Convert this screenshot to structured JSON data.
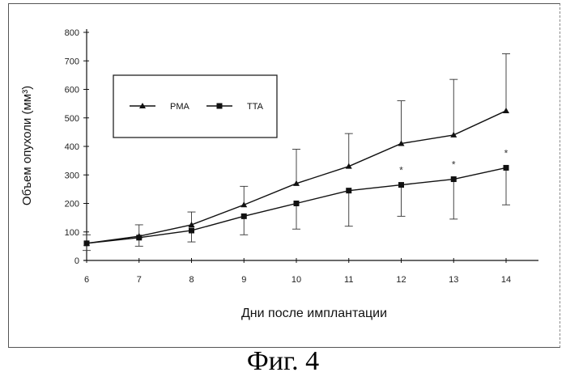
{
  "figure_caption": "Фиг. 4",
  "chart_data": {
    "type": "line",
    "x": [
      6,
      7,
      8,
      9,
      10,
      11,
      12,
      13,
      14
    ],
    "xlabel": "Дни после имплантации",
    "ylabel": "Объем опухоли (мм³)",
    "ylim": [
      0,
      800
    ],
    "yticks": [
      0,
      100,
      200,
      300,
      400,
      500,
      600,
      700,
      800
    ],
    "xtick_labels": [
      "6",
      "7",
      "8",
      "9",
      "10",
      "11",
      "12",
      "13",
      "14"
    ],
    "ytick_labels": [
      "0",
      "100",
      "200",
      "300",
      "400",
      "500",
      "600",
      "700",
      "800"
    ],
    "grid": false,
    "legend_position": "upper-left",
    "series": [
      {
        "name": "PMA",
        "marker": "triangle",
        "color": "#111111",
        "values": [
          60,
          85,
          125,
          195,
          270,
          330,
          410,
          440,
          525
        ],
        "error": [
          30,
          40,
          45,
          65,
          120,
          115,
          150,
          195,
          200
        ]
      },
      {
        "name": "TTA",
        "marker": "square",
        "color": "#111111",
        "values": [
          60,
          80,
          105,
          155,
          200,
          245,
          265,
          285,
          325
        ],
        "error": [
          25,
          30,
          40,
          65,
          90,
          125,
          110,
          140,
          130
        ]
      }
    ],
    "significance_marks": [
      {
        "x": 12,
        "label": "*"
      },
      {
        "x": 13,
        "label": "*"
      },
      {
        "x": 14,
        "label": "*"
      }
    ]
  }
}
